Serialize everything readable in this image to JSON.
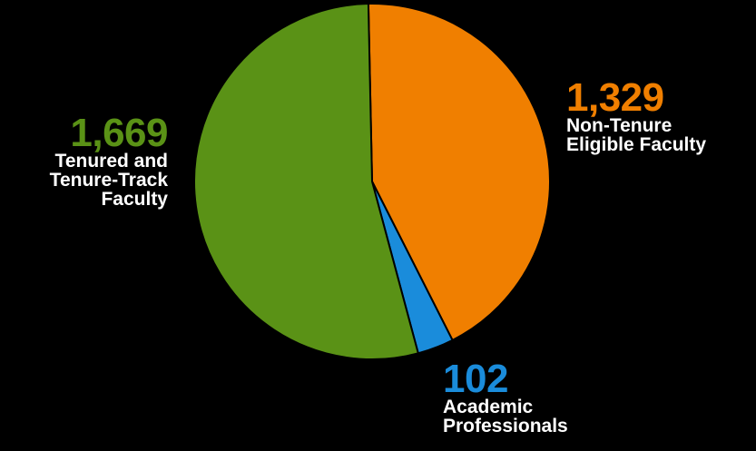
{
  "chart_data": {
    "type": "pie",
    "title": "",
    "start_angle_deg": -1.2,
    "direction": "clockwise",
    "slices": [
      {
        "label": "Non-Tenure Eligible Faculty",
        "value": 1329,
        "value_label": "1,329",
        "color": "#f07f00"
      },
      {
        "label": "Academic Professionals",
        "value": 102,
        "value_label": "102",
        "color": "#1a8cdb"
      },
      {
        "label": "Tenured and Tenure-Track Faculty",
        "value": 1669,
        "value_label": "1,669",
        "color": "#5a9216"
      }
    ],
    "legend": "none",
    "slice_border_color": "#000000"
  },
  "labels": {
    "nontenure": {
      "value": "1,329",
      "text": "Non-Tenure\nEligible Faculty"
    },
    "tenured": {
      "value": "1,669",
      "text": "Tenured and\nTenure-Track\nFaculty"
    },
    "academic": {
      "value": "102",
      "text": "Academic\nProfessionals"
    }
  }
}
